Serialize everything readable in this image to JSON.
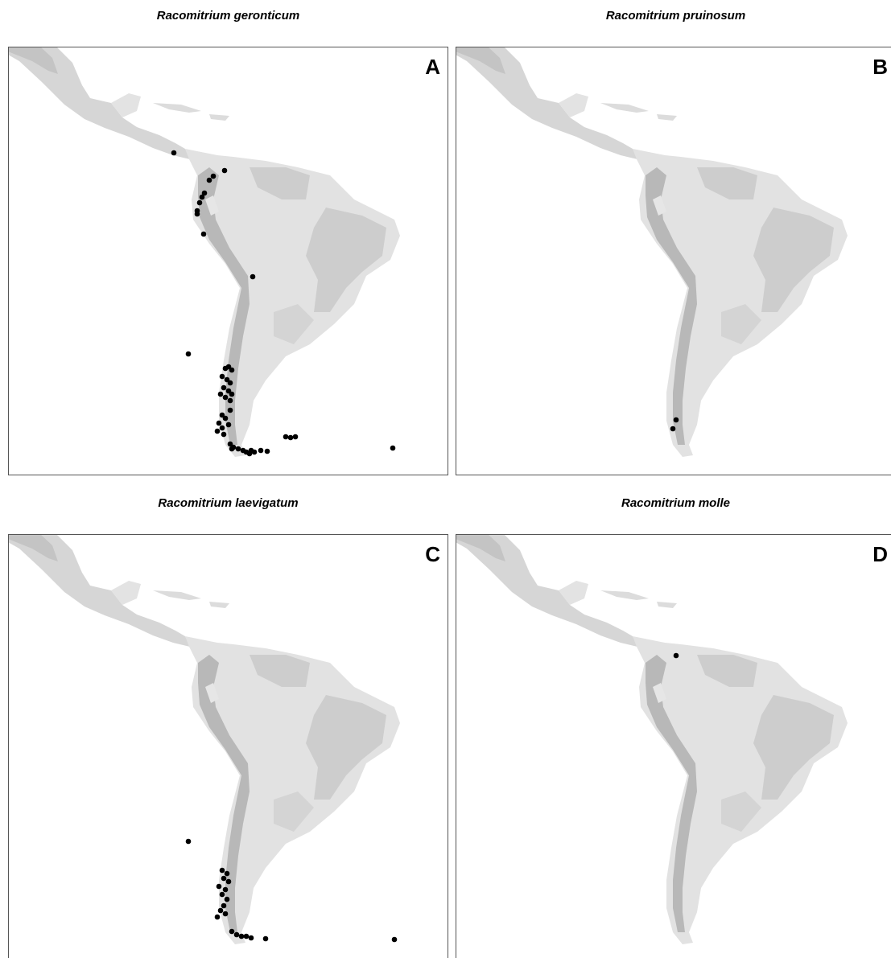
{
  "panels": [
    {
      "title": "Racomitrium geronticum",
      "label": "A"
    },
    {
      "title": "Racomitrium pruinosum",
      "label": "B"
    },
    {
      "title": "Racomitrium laevigatum",
      "label": "C"
    },
    {
      "title": "Racomitrium molle",
      "label": "D"
    }
  ]
}
